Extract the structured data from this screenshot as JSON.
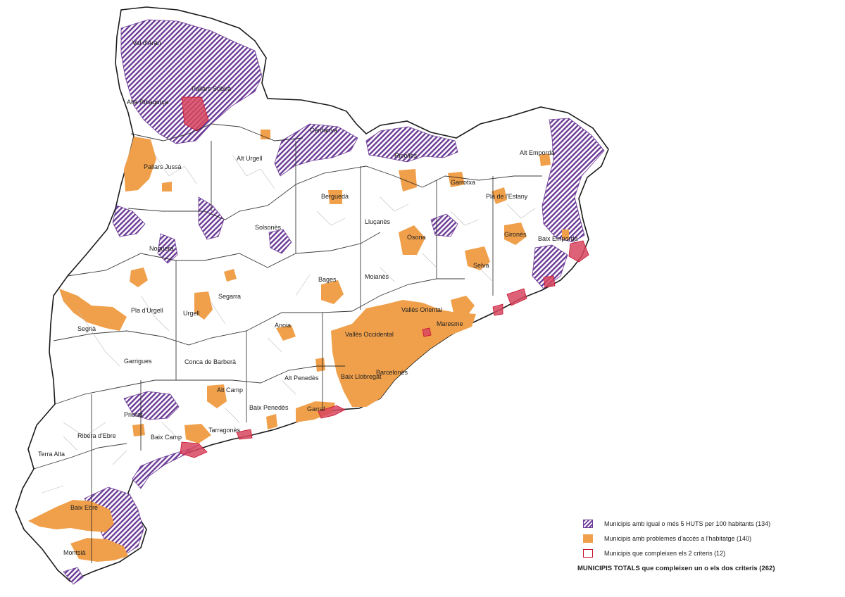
{
  "colors": {
    "huts": "#6b3a96",
    "acces": "#f0a04b",
    "both": "#d8465f",
    "border": "#1a1a1a",
    "inner_border": "#bdbdbd"
  },
  "comarques": [
    "Val d'Aran",
    "Pallars Sobirà",
    "Alta Ribagorça",
    "Cerdanya",
    "Alt Urgell",
    "Pallars Jussà",
    "Ripollès",
    "Alt Empordà",
    "Garrotxa",
    "Berguedà",
    "Pla de l'Estany",
    "Solsonès",
    "Lluçanès",
    "Osona",
    "Noguera",
    "Gironès",
    "Baix Empordà",
    "Selva",
    "Bages",
    "Moianès",
    "Segarra",
    "Pla d'Urgell",
    "Urgell",
    "Vallès Oriental",
    "Segrià",
    "Anoia",
    "Vallès Occidental",
    "Maresme",
    "Garrigues",
    "Conca de Barberà",
    "Barcelonès",
    "Alt Penedès",
    "Baix Llobregat",
    "Alt Camp",
    "Priorat",
    "Baix Penedès",
    "Garraf",
    "Tarragonès",
    "Ribera d'Ebre",
    "Baix Camp",
    "Terra Alta",
    "Baix Ebre",
    "Montsià"
  ],
  "legend": {
    "huts": "Municipis amb igual o més 5 HUTS per 100 habitants (134)",
    "acces": "Municipis amb problemes d'accés a l'habitatge (140)",
    "both": "Municipis que compleixen els 2 criteris (12)",
    "total": "MUNICIPIS TOTALS que compleixen un o els dos criteris (262)"
  }
}
